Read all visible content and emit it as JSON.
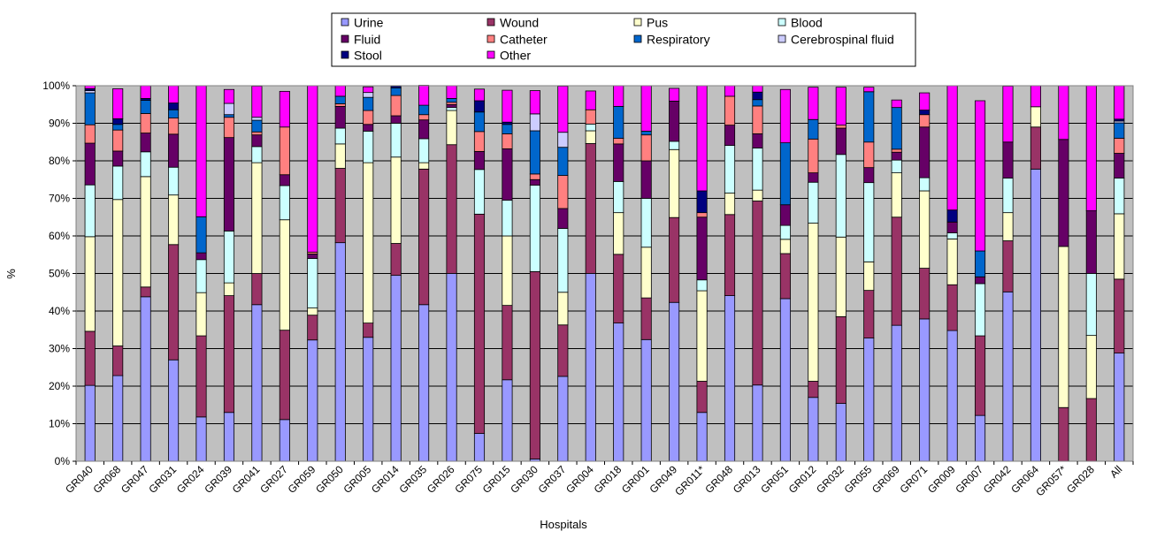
{
  "chart_data": {
    "type": "bar",
    "stacked": true,
    "percent": true,
    "xlabel": "Hospitals",
    "ylabel": "%",
    "ylim": [
      0,
      100
    ],
    "yticks": [
      "0%",
      "10%",
      "20%",
      "30%",
      "40%",
      "50%",
      "60%",
      "70%",
      "80%",
      "90%",
      "100%"
    ],
    "grid": true,
    "legend_position": "top",
    "plot_background": "#c0c0c0",
    "categories": [
      "GR040",
      "GR068",
      "GR047",
      "GR031",
      "GR024",
      "GR039",
      "GR041",
      "GR027",
      "GR059",
      "GR050",
      "GR005",
      "GR014",
      "GR035",
      "GR026",
      "GR075",
      "GR015",
      "GR030",
      "GR037",
      "GR004",
      "GR018",
      "GR001",
      "GR049",
      "GR011*",
      "GR048",
      "GR013",
      "GR051",
      "GR012",
      "GR032",
      "GR055",
      "GR069",
      "GR071",
      "GR009",
      "GR007",
      "GR042",
      "GR064",
      "GR057*",
      "GR028",
      "All"
    ],
    "series": [
      {
        "name": "Urine",
        "color": "#9999ff",
        "values": [
          20.2,
          22.8,
          43.8,
          27,
          11.8,
          13,
          41.7,
          11.1,
          32.3,
          58.2,
          33,
          49.5,
          41.7,
          50,
          7.4,
          21.7,
          0.6,
          22.6,
          50,
          36.8,
          32.4,
          42.3,
          13,
          44.1,
          20.3,
          43.3,
          17,
          15.4,
          32.8,
          36.2,
          37.9,
          34.8,
          12.2,
          45.1,
          77.8,
          0,
          0,
          28.8
        ]
      },
      {
        "name": "Wound",
        "color": "#993366",
        "values": [
          14.4,
          7.9,
          2.6,
          30.7,
          21.6,
          31.1,
          8.3,
          23.8,
          6.6,
          19.8,
          3.8,
          8.5,
          36.1,
          34.3,
          58.4,
          19.8,
          49.9,
          13.7,
          34.6,
          18.3,
          11.1,
          22.6,
          8.3,
          21.6,
          49,
          12,
          4.3,
          23.1,
          12.7,
          28.8,
          13.5,
          12.2,
          21.2,
          13.6,
          11.2,
          14.3,
          16.7,
          19.7
        ]
      },
      {
        "name": "Pus",
        "color": "#ffffcc",
        "values": [
          25.2,
          39,
          29.4,
          13.2,
          11.5,
          3.4,
          29.5,
          29.4,
          1.9,
          6.5,
          42.7,
          23,
          1.7,
          9.1,
          0,
          18.5,
          0,
          8.7,
          3.4,
          11.1,
          13.5,
          18.1,
          24.1,
          5.7,
          2.9,
          3.8,
          42.1,
          21.2,
          7.6,
          11.8,
          20.6,
          12.2,
          0,
          7.5,
          5.4,
          42.9,
          16.8,
          17.4
        ]
      },
      {
        "name": "Blood",
        "color": "#ccffff",
        "values": [
          13.8,
          8.9,
          6.6,
          7.4,
          8.8,
          13.8,
          4.3,
          9.1,
          13.2,
          4.2,
          8.4,
          9,
          6.4,
          0.8,
          11.9,
          9.5,
          23,
          17,
          1.8,
          8.3,
          13,
          2.2,
          2.9,
          12.7,
          11.2,
          3.7,
          10.9,
          22,
          21.1,
          3.4,
          3.5,
          1.6,
          13.9,
          9.2,
          0,
          0,
          16.5,
          9.5
        ]
      },
      {
        "name": "Fluid",
        "color": "#660066",
        "values": [
          11.1,
          4,
          5,
          8.8,
          1.8,
          24.9,
          3.1,
          2.9,
          1.2,
          5.8,
          1.8,
          2,
          5,
          0.8,
          4.8,
          13.7,
          1.5,
          5.3,
          0,
          10,
          10,
          10.7,
          16.7,
          5.4,
          3.8,
          5.5,
          2.5,
          7,
          4,
          2.1,
          13.5,
          2.9,
          1.8,
          9.6,
          0,
          28.5,
          16.7,
          6.6
        ]
      },
      {
        "name": "Catheter",
        "color": "#ff8080",
        "values": [
          4.9,
          5.6,
          5.2,
          4.3,
          0,
          5.4,
          0.8,
          12.7,
          0.5,
          0.7,
          3.7,
          5.4,
          1.4,
          0.6,
          5.3,
          4,
          1.5,
          8.8,
          3.8,
          1.5,
          6.9,
          0,
          1.2,
          7.7,
          7.4,
          0,
          9,
          0.8,
          6.8,
          0.8,
          3.3,
          0,
          0,
          0,
          0,
          0,
          0,
          4
        ]
      },
      {
        "name": "Respiratory",
        "color": "#0066cc",
        "values": [
          8.5,
          1.5,
          3.5,
          2.2,
          9.6,
          0.7,
          3.1,
          0,
          0,
          2,
          3.5,
          2,
          2.5,
          1,
          5.2,
          2.5,
          11.5,
          7.5,
          0,
          8.5,
          1,
          0,
          0,
          0,
          1.7,
          16.5,
          5.2,
          0,
          13.4,
          11.1,
          0,
          0,
          6.9,
          0,
          0,
          0,
          0,
          4.1
        ]
      },
      {
        "name": "Cerebrospinal fluid",
        "color": "#ccccff",
        "values": [
          0.6,
          0,
          0,
          0,
          0,
          3,
          0.8,
          0,
          0,
          0,
          1.3,
          0,
          0,
          0,
          0,
          0,
          4.5,
          4,
          0,
          0,
          0,
          0,
          0,
          0,
          0,
          0,
          0,
          0,
          0,
          0,
          0,
          0,
          0,
          0,
          0,
          0,
          0,
          0.5
        ]
      },
      {
        "name": "Stool",
        "color": "#000080",
        "values": [
          0.5,
          1.5,
          0.5,
          1.8,
          0,
          0,
          0,
          0,
          0,
          0,
          0,
          0.5,
          0,
          0,
          3,
          0.6,
          0,
          0,
          0,
          0,
          0,
          0,
          5.8,
          0,
          2,
          0,
          0,
          0,
          0,
          0,
          1.2,
          3.2,
          0,
          0,
          0,
          0,
          0,
          0.5
        ]
      },
      {
        "name": "Other",
        "color": "#ff00ff",
        "values": [
          0.8,
          8,
          3.4,
          4.6,
          34.9,
          3.7,
          8.3,
          9.5,
          44.3,
          2.8,
          1.5,
          0,
          5.3,
          3.4,
          3.1,
          8.5,
          6.2,
          12.3,
          5,
          5.5,
          12.1,
          3.4,
          28,
          2.8,
          1.7,
          14.2,
          8.6,
          10.1,
          1.2,
          2,
          4.6,
          33.1,
          40,
          14.9,
          5.6,
          14.3,
          33.3,
          8.9
        ]
      }
    ]
  }
}
